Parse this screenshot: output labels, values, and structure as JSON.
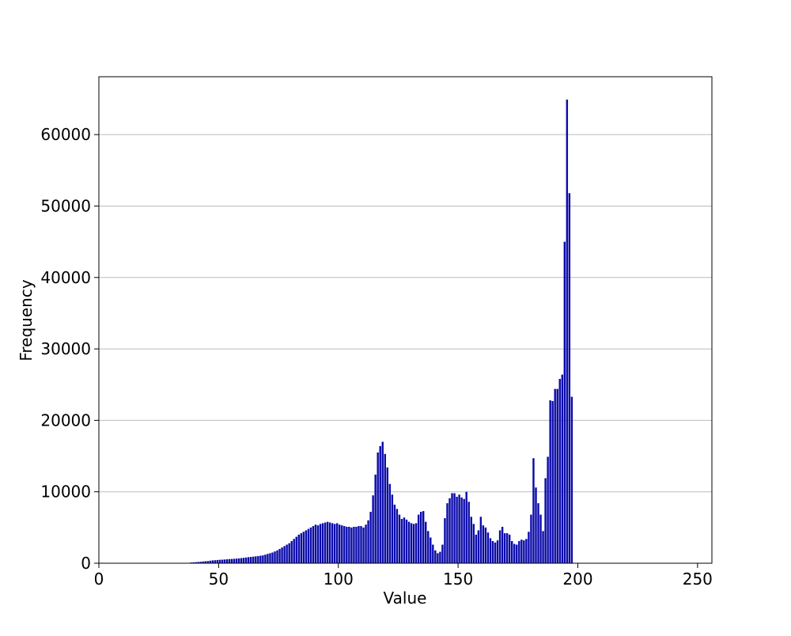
{
  "chart_data": {
    "type": "histogram",
    "xlabel": "Value",
    "ylabel": "Frequency",
    "bins": [
      38,
      39,
      40,
      41,
      42,
      43,
      44,
      45,
      46,
      47,
      48,
      49,
      50,
      51,
      52,
      53,
      54,
      55,
      56,
      57,
      58,
      59,
      60,
      61,
      62,
      63,
      64,
      65,
      66,
      67,
      68,
      69,
      70,
      71,
      72,
      73,
      74,
      75,
      76,
      77,
      78,
      79,
      80,
      81,
      82,
      83,
      84,
      85,
      86,
      87,
      88,
      89,
      90,
      91,
      92,
      93,
      94,
      95,
      96,
      97,
      98,
      99,
      100,
      101,
      102,
      103,
      104,
      105,
      106,
      107,
      108,
      109,
      110,
      111,
      112,
      113,
      114,
      115,
      116,
      117,
      118,
      119,
      120,
      121,
      122,
      123,
      124,
      125,
      126,
      127,
      128,
      129,
      130,
      131,
      132,
      133,
      134,
      135,
      136,
      137,
      138,
      139,
      140,
      141,
      142,
      143,
      144,
      145,
      146,
      147,
      148,
      149,
      150,
      151,
      152,
      153,
      154,
      155,
      156,
      157,
      158,
      159,
      160,
      161,
      162,
      163,
      164,
      165,
      166,
      167,
      168,
      169,
      170,
      171,
      172,
      173,
      174,
      175,
      176,
      177,
      178,
      179,
      180,
      181,
      182,
      183,
      184,
      185,
      186,
      187,
      188,
      189,
      190,
      191,
      192,
      193,
      194,
      195,
      196,
      197,
      198
    ],
    "counts": [
      100,
      120,
      150,
      180,
      200,
      250,
      280,
      300,
      350,
      400,
      420,
      450,
      480,
      500,
      520,
      550,
      580,
      600,
      620,
      650,
      680,
      720,
      760,
      800,
      850,
      880,
      920,
      960,
      1000,
      1050,
      1100,
      1200,
      1300,
      1400,
      1500,
      1650,
      1800,
      2000,
      2200,
      2400,
      2600,
      2800,
      3100,
      3400,
      3700,
      4000,
      4200,
      4400,
      4600,
      4800,
      5000,
      5200,
      5400,
      5300,
      5500,
      5600,
      5700,
      5800,
      5700,
      5600,
      5500,
      5600,
      5400,
      5300,
      5200,
      5100,
      5100,
      5000,
      5100,
      5100,
      5200,
      5200,
      5000,
      5400,
      6000,
      7200,
      9500,
      12400,
      15500,
      16400,
      17000,
      15300,
      13400,
      11100,
      9600,
      8200,
      7600,
      6800,
      6200,
      6400,
      6100,
      5800,
      5600,
      5500,
      5600,
      6800,
      7200,
      7300,
      5800,
      4500,
      3600,
      2600,
      1800,
      1400,
      1600,
      2600,
      6300,
      8400,
      9100,
      9800,
      9800,
      9300,
      9600,
      9200,
      9000,
      10000,
      8600,
      6500,
      5500,
      4000,
      4600,
      6500,
      5300,
      5000,
      4300,
      3500,
      3100,
      2900,
      3200,
      4600,
      5100,
      4200,
      4200,
      4000,
      3100,
      2700,
      2600,
      3100,
      3300,
      3200,
      3400,
      4400,
      6800,
      14700,
      10600,
      8400,
      6800,
      4500,
      11900,
      14900,
      22800,
      22700,
      24400,
      24400,
      25800,
      26400,
      45000,
      64900,
      51800,
      23300
    ],
    "color": "#0a0aaa",
    "xlim": [
      0,
      256
    ],
    "xticks": [
      0,
      50,
      100,
      150,
      200,
      250
    ],
    "ylim": [
      0,
      68100
    ],
    "yticks": [
      0,
      10000,
      20000,
      30000,
      40000,
      50000,
      60000
    ],
    "grid": "y"
  }
}
